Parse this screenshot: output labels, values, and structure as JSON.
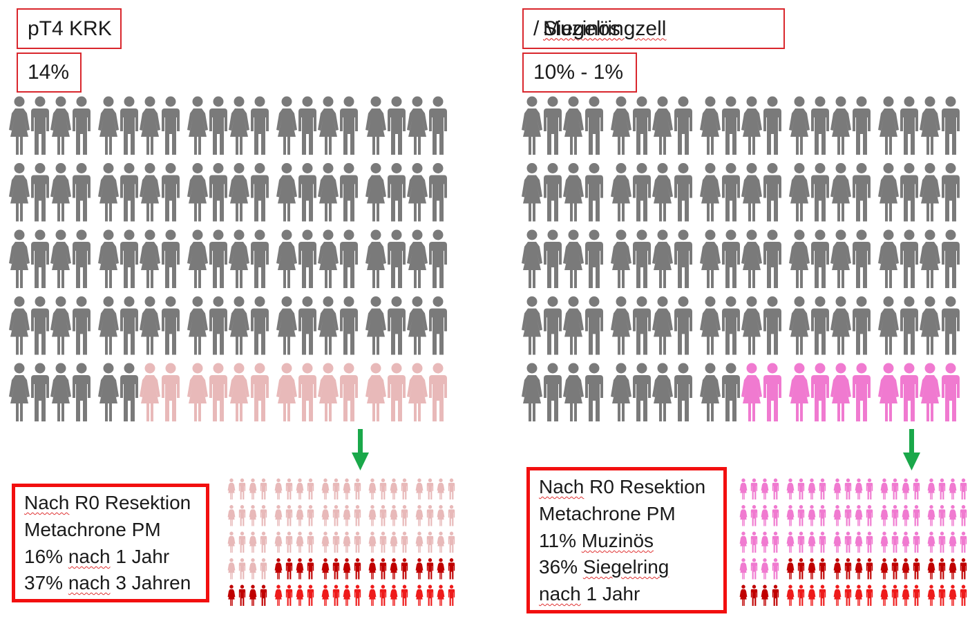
{
  "left": {
    "title": "pT4 KRK",
    "percent": "14%",
    "main_grid": {
      "rows": 5,
      "groups": 5,
      "per_group": 4,
      "highlighted": 14
    },
    "arrow_color": "#1aa84a",
    "callout_lines": [
      {
        "pre": "",
        "wavy": "Nach",
        "post": " R0 Resektion"
      },
      {
        "pre": "",
        "wavy": "",
        "post": "Metachrone PM"
      },
      {
        "pre": "16% ",
        "wavy": "nach",
        "post": " 1 Jahr"
      },
      {
        "pre": "37% ",
        "wavy": "nach",
        "post": " 3 Jahren"
      }
    ],
    "sub_grid": {
      "rows": 5,
      "groups": 5,
      "per_group": 4,
      "first_dark_row": 3,
      "first_dark_index": 4
    }
  },
  "right": {
    "title": "Muzinös / Siegelringzell",
    "percent": "10% - 1%",
    "main_grid": {
      "rows": 5,
      "groups": 5,
      "per_group": 4,
      "highlighted": 10
    },
    "arrow_color": "#1aa84a",
    "callout_lines": [
      {
        "pre": "",
        "wavy": "Nach",
        "post": " R0 Resektion"
      },
      {
        "pre": "",
        "wavy": "",
        "post": "Metachrone PM"
      },
      {
        "pre": "11% ",
        "wavy": "Muzinös",
        "post": ""
      },
      {
        "pre": "36% ",
        "wavy": "Siegelring",
        "post": ""
      },
      {
        "pre": "",
        "wavy": "nach",
        "post": " 1 Jahr"
      }
    ],
    "sub_grid": {
      "rows": 5,
      "groups": 5,
      "per_group": 4,
      "first_dark_row": 3,
      "first_dark_index": 4
    }
  },
  "colors": {
    "person_gray": "#7a7a7a",
    "left_highlight": "#e8b9b9",
    "right_highlight": "#f07ad0",
    "dark_red": "#c00000",
    "bright_red": "#ee1b1b",
    "box_border": "#d9262c",
    "callout_border": "#f20f0f"
  }
}
